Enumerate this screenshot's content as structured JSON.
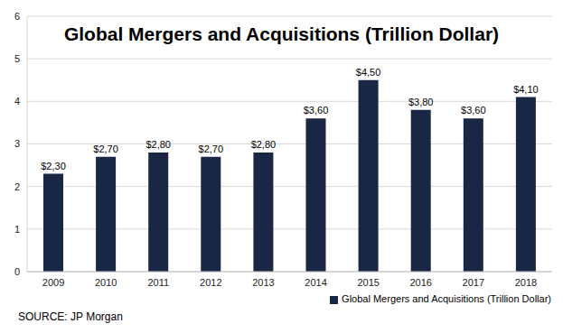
{
  "chart_data": {
    "type": "bar",
    "title": "Global Mergers and Acquisitions (Trillion Dollar)",
    "categories": [
      "2009",
      "2010",
      "2011",
      "2012",
      "2013",
      "2014",
      "2015",
      "2016",
      "2017",
      "2018"
    ],
    "series": [
      {
        "name": "Global Mergers and Acquisitions (Trillion Dollar)",
        "color": "#1a2744",
        "values": [
          2.3,
          2.7,
          2.8,
          2.7,
          2.8,
          3.6,
          4.5,
          3.8,
          3.6,
          4.1
        ],
        "value_labels": [
          "$2,30",
          "$2,70",
          "$2,80",
          "$2,70",
          "$2,80",
          "$3,60",
          "$4,50",
          "$3,80",
          "$3,60",
          "$4,10"
        ]
      }
    ],
    "ylim": [
      0,
      6
    ],
    "yticks": [
      0,
      1,
      2,
      3,
      4,
      5,
      6
    ],
    "grid": true,
    "legend": "bottom",
    "data_labels": true,
    "annotations": [
      "SOURCE: JP Morgan"
    ]
  }
}
